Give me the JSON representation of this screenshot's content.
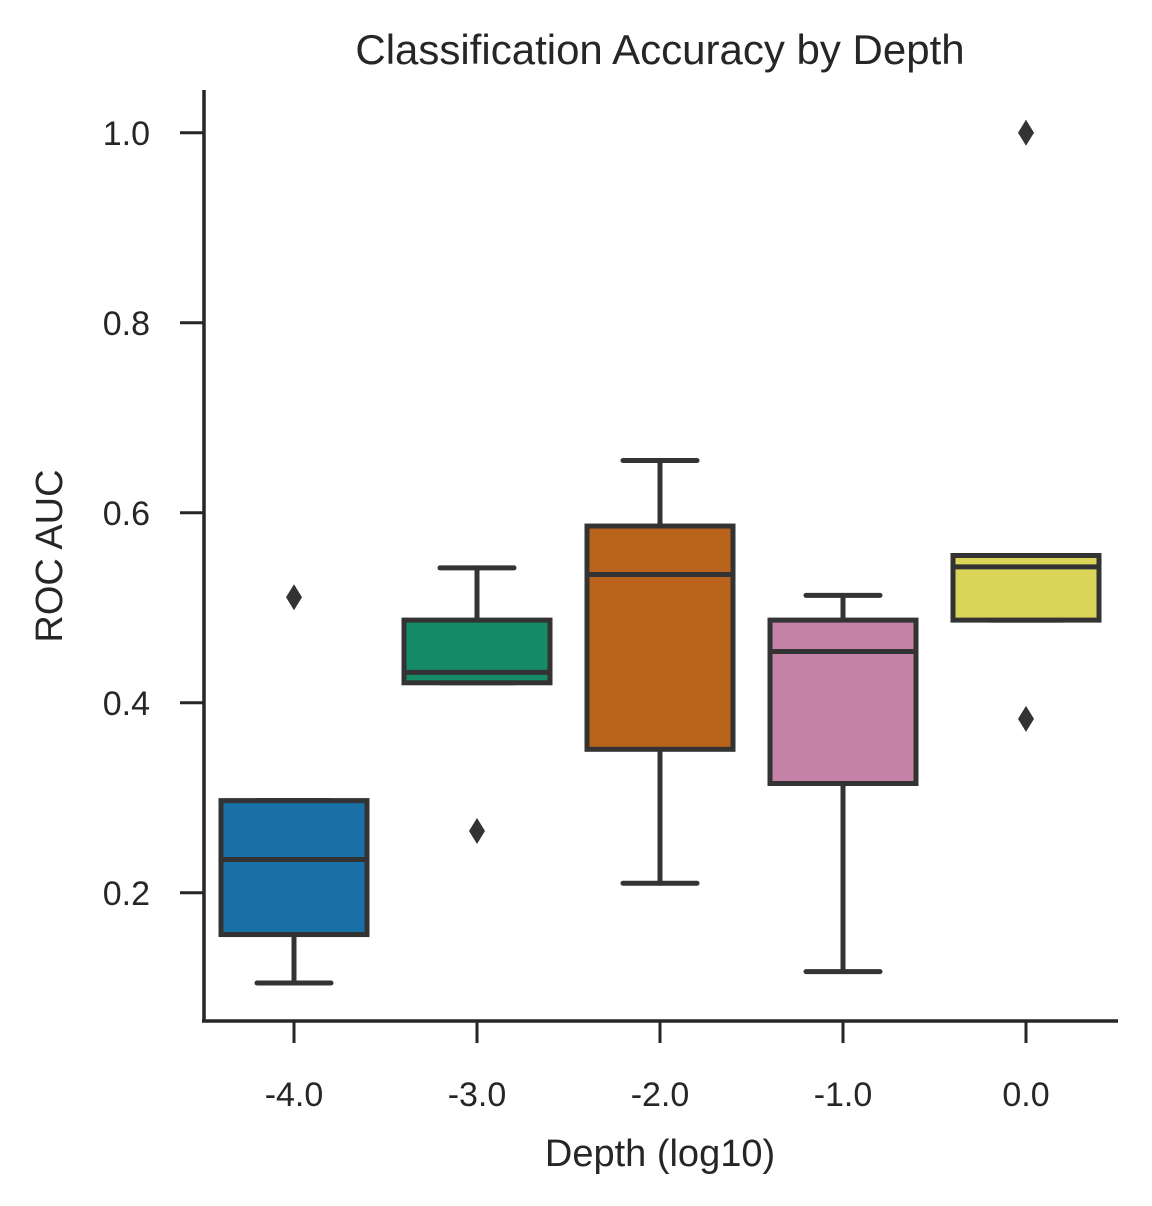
{
  "chart_data": {
    "type": "box",
    "title": "Classification Accuracy by Depth",
    "xlabel": "Depth (log10)",
    "ylabel": "ROC AUC",
    "ylim": [
      0.065,
      1.045
    ],
    "yticks": [
      0.2,
      0.4,
      0.6,
      0.8,
      1.0
    ],
    "ytick_labels": [
      "0.2",
      "0.4",
      "0.6",
      "0.8",
      "1.0"
    ],
    "categories": [
      "-4.0",
      "-3.0",
      "-2.0",
      "-1.0",
      "0.0"
    ],
    "grid": false,
    "boxes": [
      {
        "category": "-4.0",
        "whisker_low": 0.105,
        "q1": 0.156,
        "median": 0.235,
        "q3": 0.297,
        "whisker_high": 0.297,
        "outliers": [
          0.511
        ],
        "color": "#1870a6"
      },
      {
        "category": "-3.0",
        "whisker_low": 0.421,
        "q1": 0.421,
        "median": 0.432,
        "q3": 0.487,
        "whisker_high": 0.542,
        "outliers": [
          0.265
        ],
        "color": "#158a66"
      },
      {
        "category": "-2.0",
        "whisker_low": 0.21,
        "q1": 0.351,
        "median": 0.535,
        "q3": 0.586,
        "whisker_high": 0.655,
        "outliers": [],
        "color": "#ba631d"
      },
      {
        "category": "-1.0",
        "whisker_low": 0.117,
        "q1": 0.315,
        "median": 0.454,
        "q3": 0.487,
        "whisker_high": 0.513,
        "outliers": [],
        "color": "#c482a6"
      },
      {
        "category": "0.0",
        "whisker_low": 0.487,
        "q1": 0.487,
        "median": 0.543,
        "q3": 0.555,
        "whisker_high": 0.555,
        "outliers": [
          1.0,
          0.383
        ],
        "color": "#dad558"
      }
    ]
  }
}
